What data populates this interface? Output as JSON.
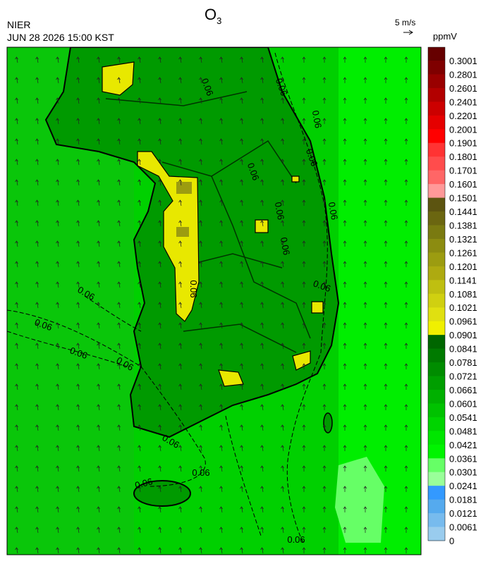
{
  "header": {
    "title": {
      "main": "O",
      "sub": "3"
    },
    "agency": "NIER",
    "datetime": "JUN 28 2026 15:00 KST",
    "wind_scale": "5 m/s"
  },
  "legend": {
    "unit": "ppmV",
    "labels": [
      "0.3001",
      "0.2801",
      "0.2601",
      "0.2401",
      "0.2201",
      "0.2001",
      "0.1901",
      "0.1801",
      "0.1701",
      "0.1601",
      "0.1501",
      "0.1441",
      "0.1381",
      "0.1321",
      "0.1261",
      "0.1201",
      "0.1141",
      "0.1081",
      "0.1021",
      "0.0961",
      "0.0901",
      "0.0841",
      "0.0781",
      "0.0721",
      "0.0661",
      "0.0601",
      "0.0541",
      "0.0481",
      "0.0421",
      "0.0361",
      "0.0301",
      "0.0241",
      "0.0181",
      "0.0121",
      "0.0061",
      "0"
    ],
    "colors": [
      "#660000",
      "#7f0000",
      "#990000",
      "#b20000",
      "#cc0000",
      "#e50000",
      "#ff0000",
      "#ff3333",
      "#ff4c4c",
      "#ff6666",
      "#ff9999",
      "#5c5410",
      "#6b6610",
      "#7a7a10",
      "#8c8c10",
      "#9c9c10",
      "#aeaa10",
      "#bfbf10",
      "#d0d010",
      "#e0e010",
      "#f0f000",
      "#006600",
      "#007a00",
      "#008c00",
      "#009e00",
      "#00b000",
      "#00c200",
      "#00d400",
      "#00e600",
      "#00f400",
      "#66ff66",
      "#99ff99",
      "#3399ff",
      "#55aaee",
      "#77bbee",
      "#99ccee"
    ]
  },
  "map": {
    "contour_labels": [
      "0.06",
      "0.06",
      "0.06",
      "0.06",
      "0.06",
      "0.06",
      "0.06",
      "0.06",
      "0.06",
      "0.06",
      "0.06",
      "0.06",
      "0.06",
      "0.06",
      "0.06",
      "0.06",
      "0.06",
      "0.06"
    ]
  }
}
